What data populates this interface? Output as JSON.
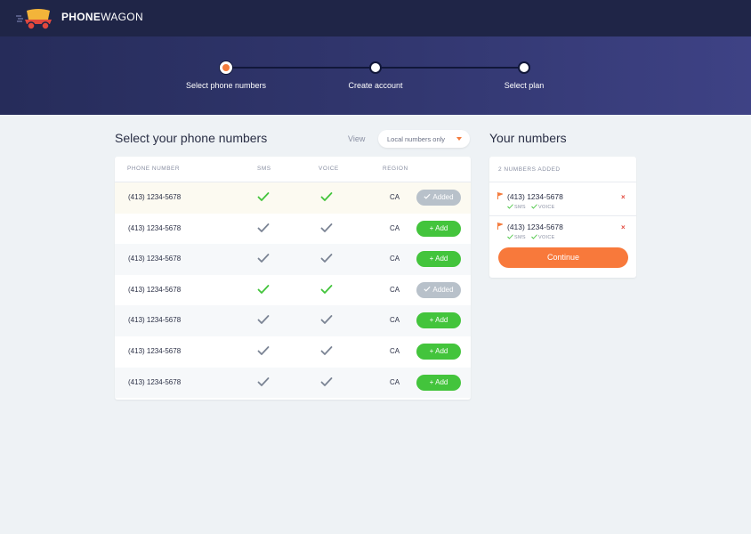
{
  "brand": {
    "name_bold": "PHONE",
    "name_light": "WAGON"
  },
  "steps": [
    {
      "label": "Select phone numbers",
      "state": "active"
    },
    {
      "label": "Create account",
      "state": "todo"
    },
    {
      "label": "Select plan",
      "state": "todo"
    }
  ],
  "main": {
    "title": "Select your phone numbers",
    "view_label": "View",
    "view_select": "Local numbers only"
  },
  "table": {
    "headers": [
      "PHONE NUMBER",
      "SMS",
      "VOICE",
      "REGION"
    ],
    "rows": [
      {
        "number": "(413) 1234-5678",
        "sms": true,
        "voice": true,
        "sms_color": "green",
        "voice_color": "green",
        "region": "CA",
        "action": "Added",
        "added": true
      },
      {
        "number": "(413) 1234-5678",
        "sms": true,
        "voice": true,
        "sms_color": "gray",
        "voice_color": "gray",
        "region": "CA",
        "action": "+ Add",
        "added": false
      },
      {
        "number": "(413) 1234-5678",
        "sms": true,
        "voice": true,
        "sms_color": "gray",
        "voice_color": "gray",
        "region": "CA",
        "action": "+ Add",
        "added": false
      },
      {
        "number": "(413) 1234-5678",
        "sms": true,
        "voice": true,
        "sms_color": "green",
        "voice_color": "green",
        "region": "CA",
        "action": "Added",
        "added": true
      },
      {
        "number": "(413) 1234-5678",
        "sms": true,
        "voice": true,
        "sms_color": "gray",
        "voice_color": "gray",
        "region": "CA",
        "action": "+ Add",
        "added": false
      },
      {
        "number": "(413) 1234-5678",
        "sms": true,
        "voice": true,
        "sms_color": "gray",
        "voice_color": "gray",
        "region": "CA",
        "action": "+ Add",
        "added": false
      },
      {
        "number": "(413) 1234-5678",
        "sms": true,
        "voice": true,
        "sms_color": "gray",
        "voice_color": "gray",
        "region": "CA",
        "action": "+ Add",
        "added": false
      }
    ]
  },
  "your_numbers": {
    "title": "Your numbers",
    "count_label": "2 NUMBERS ADDED",
    "items": [
      {
        "number": "(413) 1234-5678",
        "tags": [
          "SMS",
          "VOICE"
        ]
      },
      {
        "number": "(413) 1234-5678",
        "tags": [
          "SMS",
          "VOICE"
        ]
      }
    ],
    "continue_label": "Continue"
  },
  "colors": {
    "navy": "#1f2547",
    "accent_orange": "#f47b3c",
    "green": "#43c43c",
    "added_gray": "#b8c1ca",
    "remove_red": "#e2483d"
  }
}
